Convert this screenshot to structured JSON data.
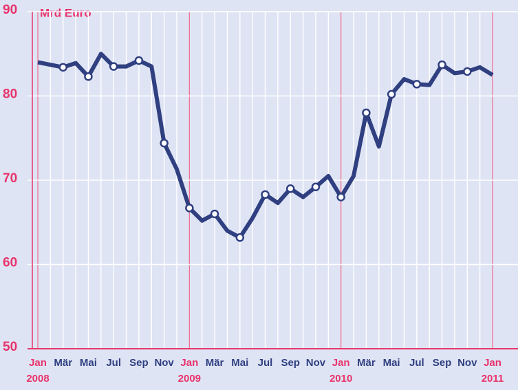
{
  "chart_data": {
    "type": "line",
    "y_label": "Mrd Euro",
    "categories": [
      "Jan",
      null,
      "Mär",
      null,
      "Mai",
      null,
      "Jul",
      null,
      "Sep",
      null,
      "Nov",
      null,
      "Jan",
      null,
      "Mär",
      null,
      "Mai",
      null,
      "Jul",
      null,
      "Sep",
      null,
      "Nov",
      null,
      "Jan",
      null,
      "Mär",
      null,
      "Mai",
      null,
      "Jul",
      null,
      "Sep",
      null,
      "Nov",
      null,
      "Jan"
    ],
    "year_labels": [
      "2008",
      "2009",
      "2010",
      "2011"
    ],
    "series": [
      {
        "color": "#2f3f80",
        "values": [
          84.0,
          83.7,
          83.4,
          83.9,
          82.3,
          85.0,
          83.5,
          83.5,
          84.2,
          83.5,
          74.4,
          71.3,
          66.7,
          65.2,
          66.0,
          64.0,
          63.2,
          65.5,
          68.3,
          67.3,
          69.0,
          68.0,
          69.2,
          70.5,
          68.0,
          70.5,
          78.0,
          74.0,
          80.2,
          82.0,
          81.4,
          81.3,
          83.7,
          82.7,
          82.9,
          83.4,
          82.5
        ]
      }
    ],
    "ylim": [
      50,
      90
    ],
    "yticks": [
      50,
      60,
      70,
      80,
      90
    ],
    "grid": true
  }
}
